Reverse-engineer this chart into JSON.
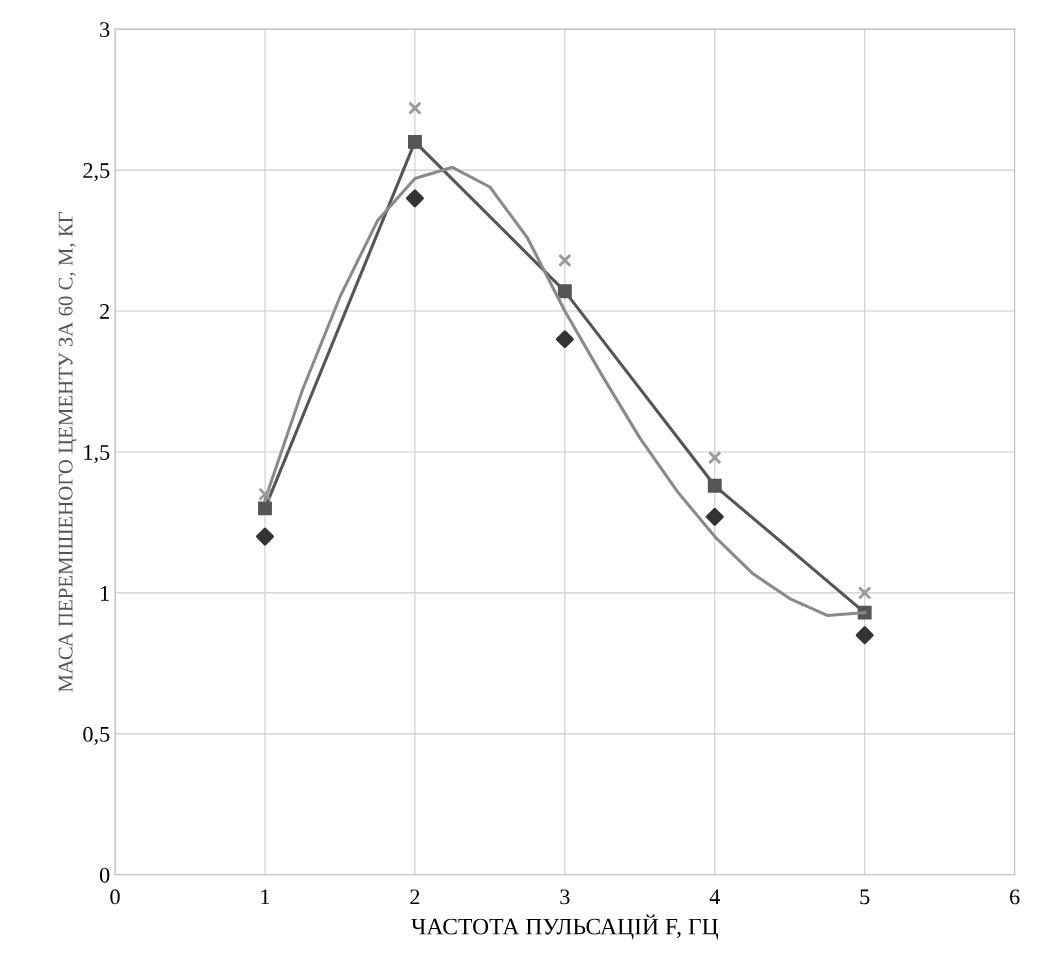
{
  "chart_data": {
    "type": "scatter",
    "xlabel": "ЧАСТОТА ПУЛЬСАЦІЙ F, ГЦ",
    "ylabel": "МАСА ПЕРЕМІШЕНОГО ЦЕМЕНТУ ЗА 60 С, М, КГ",
    "x": [
      1,
      2,
      3,
      4,
      5
    ],
    "series": [
      {
        "marker": "diamond",
        "color": "#333333",
        "values": [
          1.2,
          2.4,
          1.9,
          1.27,
          0.85
        ]
      },
      {
        "type": "line",
        "marker": "square",
        "line_style": "solid",
        "color": "#555555",
        "values": [
          1.3,
          2.6,
          2.07,
          1.38,
          0.93
        ]
      },
      {
        "marker": "cross",
        "color": "#999999",
        "values": [
          1.35,
          2.72,
          2.18,
          1.48,
          1.0
        ]
      },
      {
        "type": "line",
        "marker": "none",
        "line_style": "solid",
        "color": "#8a8a8a",
        "x": [
          1,
          1.25,
          1.5,
          1.75,
          2,
          2.25,
          2.5,
          2.75,
          3,
          3.25,
          3.5,
          3.75,
          4,
          4.25,
          4.5,
          4.75,
          5
        ],
        "values": [
          1.33,
          1.72,
          2.05,
          2.32,
          2.47,
          2.51,
          2.44,
          2.26,
          2.0,
          1.77,
          1.55,
          1.36,
          1.2,
          1.07,
          0.98,
          0.92,
          0.93
        ]
      }
    ],
    "xlim": [
      0,
      6
    ],
    "xticks": [
      0,
      1,
      2,
      3,
      4,
      5,
      6
    ],
    "ylim": [
      0,
      3
    ],
    "yticks": [
      0,
      {
        "value": 0.5,
        "label": "0,5"
      },
      1,
      {
        "value": 1.5,
        "label": "1,5"
      },
      2,
      {
        "value": 2.5,
        "label": "2,5"
      },
      3
    ],
    "grid": true
  }
}
